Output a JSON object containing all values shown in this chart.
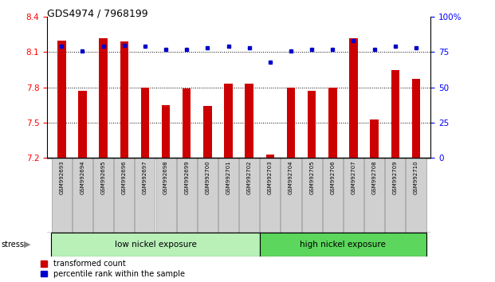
{
  "title": "GDS4974 / 7968199",
  "samples": [
    "GSM992693",
    "GSM992694",
    "GSM992695",
    "GSM992696",
    "GSM992697",
    "GSM992698",
    "GSM992699",
    "GSM992700",
    "GSM992701",
    "GSM992702",
    "GSM992703",
    "GSM992704",
    "GSM992705",
    "GSM992706",
    "GSM992707",
    "GSM992708",
    "GSM992709",
    "GSM992710"
  ],
  "transformed_count": [
    8.2,
    7.77,
    8.22,
    8.19,
    7.8,
    7.65,
    7.79,
    7.64,
    7.83,
    7.83,
    7.23,
    7.8,
    7.77,
    7.8,
    8.22,
    7.53,
    7.95,
    7.87
  ],
  "percentile_rank": [
    79,
    76,
    79,
    80,
    79,
    77,
    77,
    78,
    79,
    78,
    68,
    76,
    77,
    77,
    83,
    77,
    79,
    78
  ],
  "ylim_left": [
    7.2,
    8.4
  ],
  "ylim_right": [
    0,
    100
  ],
  "yticks_left": [
    7.2,
    7.5,
    7.8,
    8.1,
    8.4
  ],
  "yticks_right": [
    0,
    25,
    50,
    75,
    100
  ],
  "bar_color": "#cc0000",
  "dot_color": "#0000cc",
  "group1_label": "low nickel exposure",
  "group1_count": 10,
  "group2_label": "high nickel exposure",
  "group2_count": 8,
  "stress_label": "stress",
  "legend_bar": "transformed count",
  "legend_dot": "percentile rank within the sample",
  "group1_color": "#b8f0b8",
  "group2_color": "#5cd65c",
  "xticklabel_bg": "#d0d0d0"
}
